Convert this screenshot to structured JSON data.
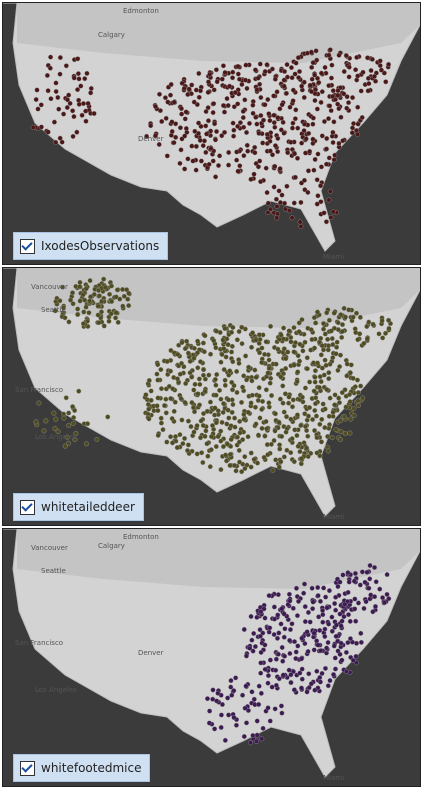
{
  "panels": [
    {
      "layer": "IxodesObservations",
      "color": "#4a1818",
      "places": [
        "Edmonton",
        "Calgary",
        "Denver",
        "Miami"
      ]
    },
    {
      "layer": "whitetaileddeer",
      "color": "#4f4c22",
      "places": [
        "Vancouver",
        "Seattle",
        "San Francisco",
        "Los Angeles",
        "Miami"
      ]
    },
    {
      "layer": "whitefootedmice",
      "color": "#3c1a52",
      "places": [
        "Edmonton",
        "Vancouver",
        "Calgary",
        "Seattle",
        "San Francisco",
        "Denver",
        "Los Angeles",
        "Miami"
      ]
    }
  ]
}
